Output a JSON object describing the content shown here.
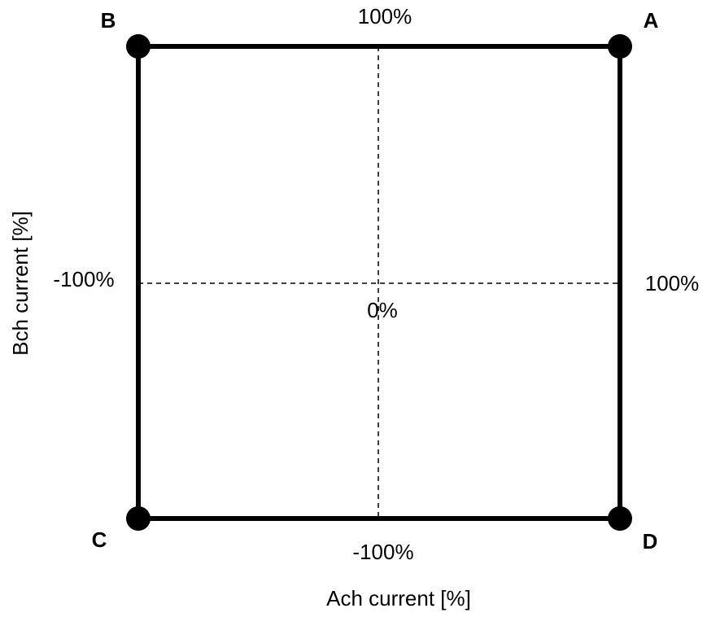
{
  "corners": {
    "A": "A",
    "B": "B",
    "C": "C",
    "D": "D"
  },
  "ach_axis": {
    "title": "Ach current [%]",
    "min_label": "-100%",
    "max_label": "100%"
  },
  "bch_axis": {
    "title": "Bch current [%]",
    "min_label": "-100%",
    "max_label": "100%"
  },
  "center_label": "0%"
}
